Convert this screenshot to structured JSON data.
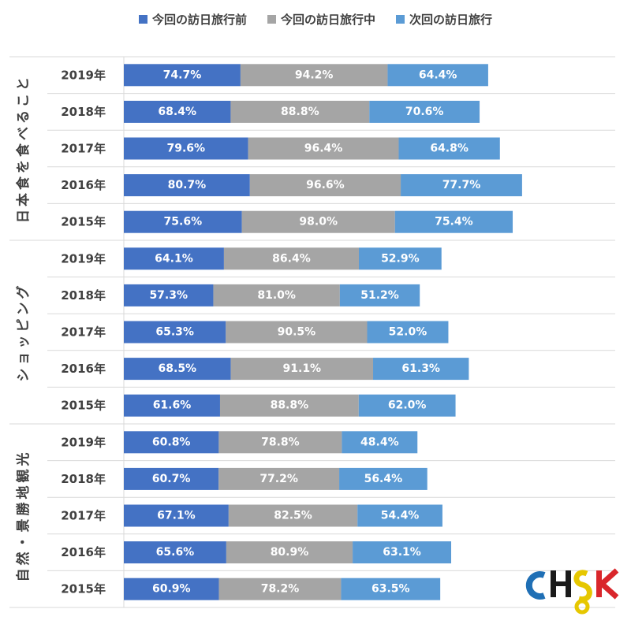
{
  "chart_data": {
    "type": "bar",
    "orientation": "horizontal",
    "stacked": true,
    "legend_position": "top",
    "grid": false,
    "series": [
      {
        "name": "今回の訪日旅行前",
        "color": "#4472C4"
      },
      {
        "name": "今回の訪日旅行中",
        "color": "#A5A5A5"
      },
      {
        "name": "次回の訪日旅行",
        "color": "#5B9BD5"
      }
    ],
    "groups": [
      {
        "label": "日本食を食べること",
        "rows": [
          {
            "year": "2019年",
            "values": [
              74.7,
              94.2,
              64.4
            ],
            "labels": [
              "74.7%",
              "94.2%",
              "64.4%"
            ]
          },
          {
            "year": "2018年",
            "values": [
              68.4,
              88.8,
              70.6
            ],
            "labels": [
              "68.4%",
              "88.8%",
              "70.6%"
            ]
          },
          {
            "year": "2017年",
            "values": [
              79.6,
              96.4,
              64.8
            ],
            "labels": [
              "79.6%",
              "96.4%",
              "64.8%"
            ]
          },
          {
            "year": "2016年",
            "values": [
              80.7,
              96.6,
              77.7
            ],
            "labels": [
              "80.7%",
              "96.6%",
              "77.7%"
            ]
          },
          {
            "year": "2015年",
            "values": [
              75.6,
              98.0,
              75.4
            ],
            "labels": [
              "75.6%",
              "98.0%",
              "75.4%"
            ]
          }
        ]
      },
      {
        "label": "ショッピング",
        "rows": [
          {
            "year": "2019年",
            "values": [
              64.1,
              86.4,
              52.9
            ],
            "labels": [
              "64.1%",
              "86.4%",
              "52.9%"
            ]
          },
          {
            "year": "2018年",
            "values": [
              57.3,
              81.0,
              51.2
            ],
            "labels": [
              "57.3%",
              "81.0%",
              "51.2%"
            ]
          },
          {
            "year": "2017年",
            "values": [
              65.3,
              90.5,
              52.0
            ],
            "labels": [
              "65.3%",
              "90.5%",
              "52.0%"
            ]
          },
          {
            "year": "2016年",
            "values": [
              68.5,
              91.1,
              61.3
            ],
            "labels": [
              "68.5%",
              "91.1%",
              "61.3%"
            ]
          },
          {
            "year": "2015年",
            "values": [
              61.6,
              88.8,
              62.0
            ],
            "labels": [
              "61.6%",
              "88.8%",
              "62.0%"
            ]
          }
        ]
      },
      {
        "label": "自然・景勝地観光",
        "rows": [
          {
            "year": "2019年",
            "values": [
              60.8,
              78.8,
              48.4
            ],
            "labels": [
              "60.8%",
              "78.8%",
              "48.4%"
            ]
          },
          {
            "year": "2018年",
            "values": [
              60.7,
              77.2,
              56.4
            ],
            "labels": [
              "60.7%",
              "77.2%",
              "56.4%"
            ]
          },
          {
            "year": "2017年",
            "values": [
              67.1,
              82.5,
              54.4
            ],
            "labels": [
              "67.1%",
              "82.5%",
              "54.4%"
            ]
          },
          {
            "year": "2016年",
            "values": [
              65.6,
              80.9,
              63.1
            ],
            "labels": [
              "65.6%",
              "80.9%",
              "63.1%"
            ]
          },
          {
            "year": "2015年",
            "values": [
              60.9,
              78.2,
              63.5
            ],
            "labels": [
              "60.9%",
              "78.2%",
              "63.5%"
            ]
          }
        ]
      }
    ]
  },
  "logo": {
    "text": "CHSK"
  }
}
